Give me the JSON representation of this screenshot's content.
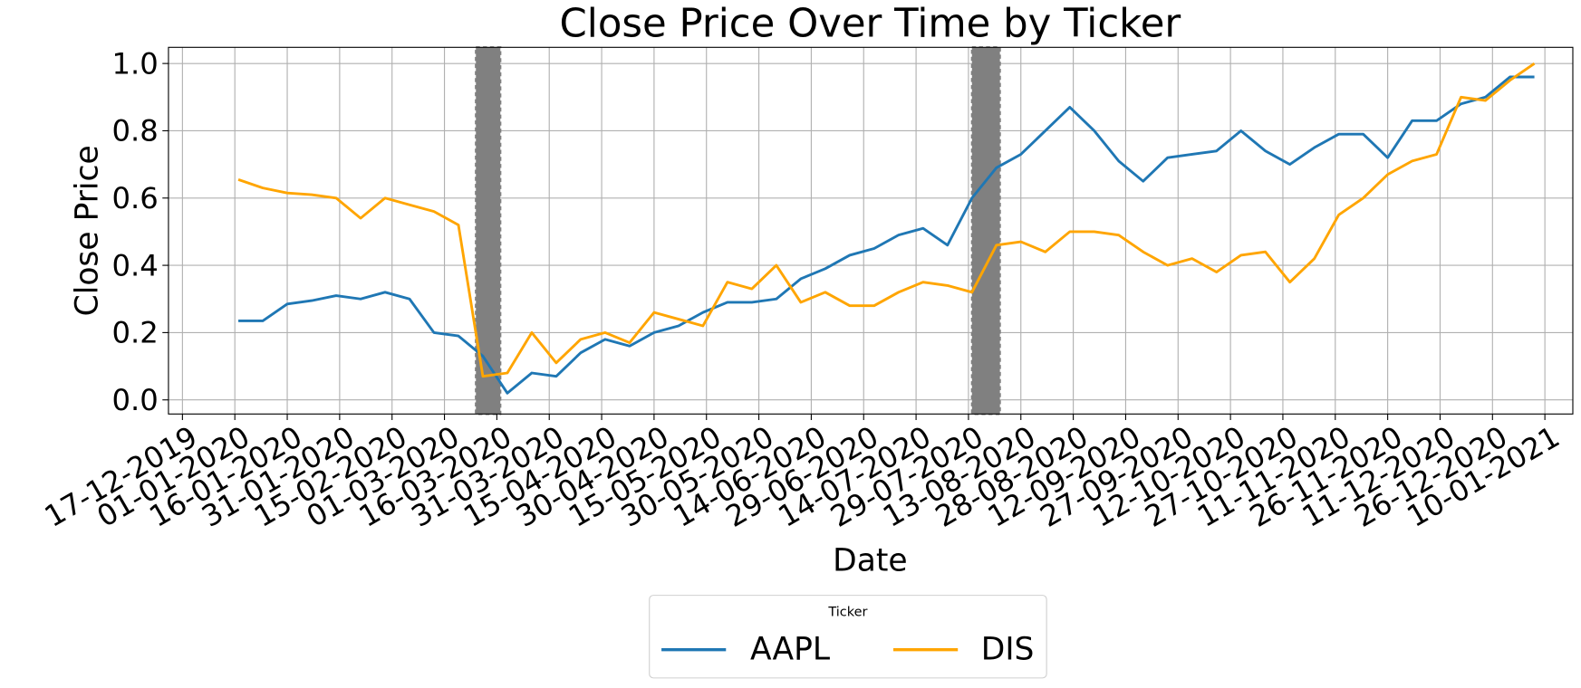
{
  "chart_data": {
    "type": "line",
    "title": "Close Price Over Time by Ticker",
    "xlabel": "Date",
    "ylabel": "Close Price",
    "legend_title": "Ticker",
    "legend_position": "bottom",
    "grid": true,
    "x": [
      "2020-01-02",
      "2020-01-09",
      "2020-01-16",
      "2020-01-23",
      "2020-01-30",
      "2020-02-06",
      "2020-02-13",
      "2020-02-20",
      "2020-02-27",
      "2020-03-05",
      "2020-03-12",
      "2020-03-19",
      "2020-03-26",
      "2020-04-02",
      "2020-04-09",
      "2020-04-16",
      "2020-04-23",
      "2020-04-30",
      "2020-05-07",
      "2020-05-14",
      "2020-05-21",
      "2020-05-28",
      "2020-06-04",
      "2020-06-11",
      "2020-06-18",
      "2020-06-25",
      "2020-07-02",
      "2020-07-09",
      "2020-07-16",
      "2020-07-23",
      "2020-07-30",
      "2020-08-06",
      "2020-08-13",
      "2020-08-20",
      "2020-08-27",
      "2020-09-03",
      "2020-09-10",
      "2020-09-17",
      "2020-09-24",
      "2020-10-01",
      "2020-10-08",
      "2020-10-15",
      "2020-10-22",
      "2020-10-29",
      "2020-11-05",
      "2020-11-12",
      "2020-11-19",
      "2020-11-26",
      "2020-12-03",
      "2020-12-10",
      "2020-12-17",
      "2020-12-24",
      "2020-12-31",
      "2021-01-07"
    ],
    "series": [
      {
        "name": "AAPL",
        "color": "#1f77b4",
        "values": [
          0.235,
          0.235,
          0.285,
          0.295,
          0.31,
          0.3,
          0.32,
          0.3,
          0.2,
          0.19,
          0.13,
          0.02,
          0.08,
          0.07,
          0.14,
          0.18,
          0.16,
          0.2,
          0.22,
          0.26,
          0.29,
          0.29,
          0.3,
          0.36,
          0.39,
          0.43,
          0.45,
          0.49,
          0.51,
          0.46,
          0.6,
          0.69,
          0.73,
          0.8,
          0.87,
          0.8,
          0.71,
          0.65,
          0.72,
          0.73,
          0.74,
          0.8,
          0.74,
          0.7,
          0.75,
          0.79,
          0.79,
          0.72,
          0.83,
          0.83,
          0.88,
          0.9,
          0.96,
          0.96
        ]
      },
      {
        "name": "DIS",
        "color": "#ffa500",
        "values": [
          0.655,
          0.63,
          0.615,
          0.61,
          0.6,
          0.54,
          0.6,
          0.58,
          0.56,
          0.52,
          0.07,
          0.08,
          0.2,
          0.11,
          0.18,
          0.2,
          0.17,
          0.26,
          0.24,
          0.22,
          0.35,
          0.33,
          0.4,
          0.29,
          0.32,
          0.28,
          0.28,
          0.32,
          0.35,
          0.34,
          0.32,
          0.46,
          0.47,
          0.44,
          0.5,
          0.5,
          0.49,
          0.44,
          0.4,
          0.42,
          0.38,
          0.43,
          0.44,
          0.35,
          0.42,
          0.55,
          0.6,
          0.67,
          0.71,
          0.73,
          0.9,
          0.89,
          0.95,
          1.0
        ]
      }
    ],
    "spans": [
      {
        "start": "2020-03-10",
        "end": "2020-03-17",
        "color": "#808080"
      },
      {
        "start": "2020-07-30",
        "end": "2020-08-07",
        "color": "#808080"
      }
    ],
    "xlim": [
      "2019-12-13",
      "2021-01-18"
    ],
    "xticks": [
      {
        "value": "2019-12-17",
        "label": "17-12-2019"
      },
      {
        "value": "2020-01-01",
        "label": "01-01-2020"
      },
      {
        "value": "2020-01-16",
        "label": "16-01-2020"
      },
      {
        "value": "2020-01-31",
        "label": "31-01-2020"
      },
      {
        "value": "2020-02-15",
        "label": "15-02-2020"
      },
      {
        "value": "2020-03-01",
        "label": "01-03-2020"
      },
      {
        "value": "2020-03-16",
        "label": "16-03-2020"
      },
      {
        "value": "2020-03-31",
        "label": "31-03-2020"
      },
      {
        "value": "2020-04-15",
        "label": "15-04-2020"
      },
      {
        "value": "2020-04-30",
        "label": "30-04-2020"
      },
      {
        "value": "2020-05-15",
        "label": "15-05-2020"
      },
      {
        "value": "2020-05-30",
        "label": "30-05-2020"
      },
      {
        "value": "2020-06-14",
        "label": "14-06-2020"
      },
      {
        "value": "2020-06-29",
        "label": "29-06-2020"
      },
      {
        "value": "2020-07-14",
        "label": "14-07-2020"
      },
      {
        "value": "2020-07-29",
        "label": "29-07-2020"
      },
      {
        "value": "2020-08-13",
        "label": "13-08-2020"
      },
      {
        "value": "2020-08-28",
        "label": "28-08-2020"
      },
      {
        "value": "2020-09-12",
        "label": "12-09-2020"
      },
      {
        "value": "2020-09-27",
        "label": "27-09-2020"
      },
      {
        "value": "2020-10-12",
        "label": "12-10-2020"
      },
      {
        "value": "2020-10-27",
        "label": "27-10-2020"
      },
      {
        "value": "2020-11-11",
        "label": "11-11-2020"
      },
      {
        "value": "2020-11-26",
        "label": "26-11-2020"
      },
      {
        "value": "2020-12-11",
        "label": "11-12-2020"
      },
      {
        "value": "2020-12-26",
        "label": "26-12-2020"
      },
      {
        "value": "2021-01-10",
        "label": "10-01-2021"
      }
    ],
    "ylim": [
      -0.042,
      1.048
    ],
    "yticks": [
      {
        "value": 0,
        "label": "0.0"
      },
      0.2,
      0.4,
      0.6,
      0.8,
      {
        "value": 1,
        "label": "1.0"
      }
    ]
  }
}
